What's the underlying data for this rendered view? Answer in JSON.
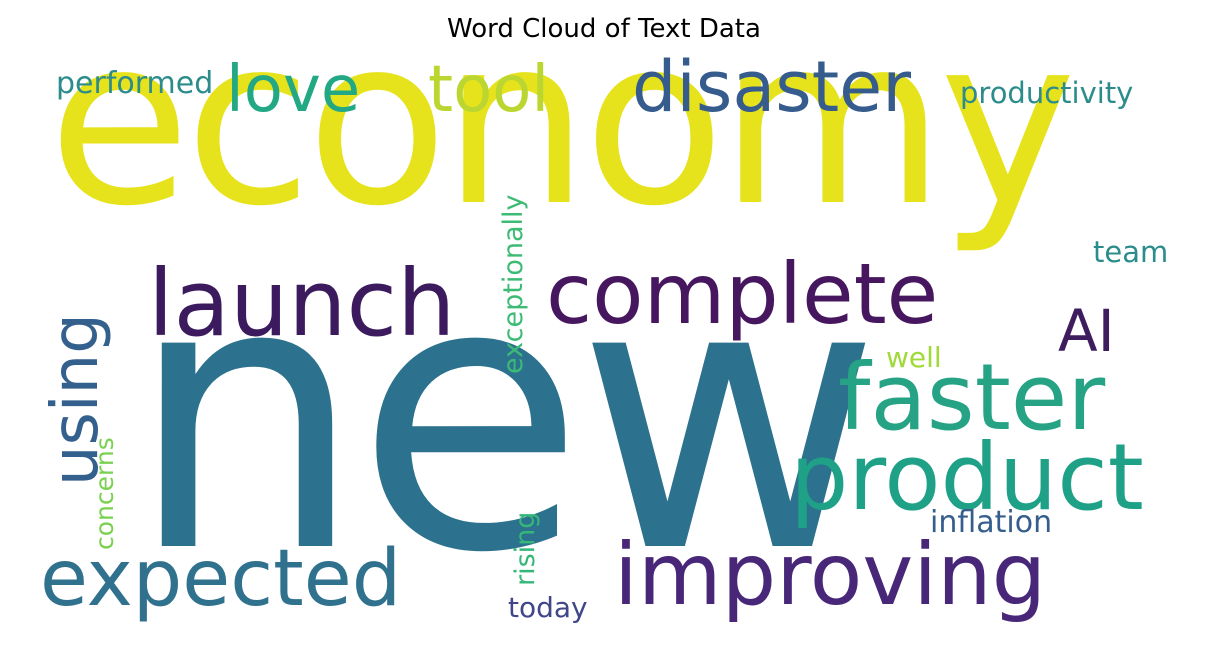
{
  "title": "Word Cloud of Text Data",
  "words": {
    "economy": "economy",
    "new": "new",
    "performed": "performed",
    "love": "love",
    "tool": "tool",
    "disaster": "disaster",
    "productivity": "productivity",
    "launch": "launch",
    "complete": "complete",
    "ai": "AI",
    "faster": "faster",
    "product": "product",
    "team": "team",
    "well": "well",
    "inflation": "inflation",
    "expected": "expected",
    "improving": "improving",
    "today": "today",
    "using": "using",
    "concerns": "concerns",
    "exceptionally": "exceptionally",
    "rising": "rising"
  },
  "colors": {
    "economy": "#e6e31c",
    "new": "#2c728e",
    "launch": "#3b1a5e",
    "faster": "#26a385",
    "improving": "#482779"
  }
}
